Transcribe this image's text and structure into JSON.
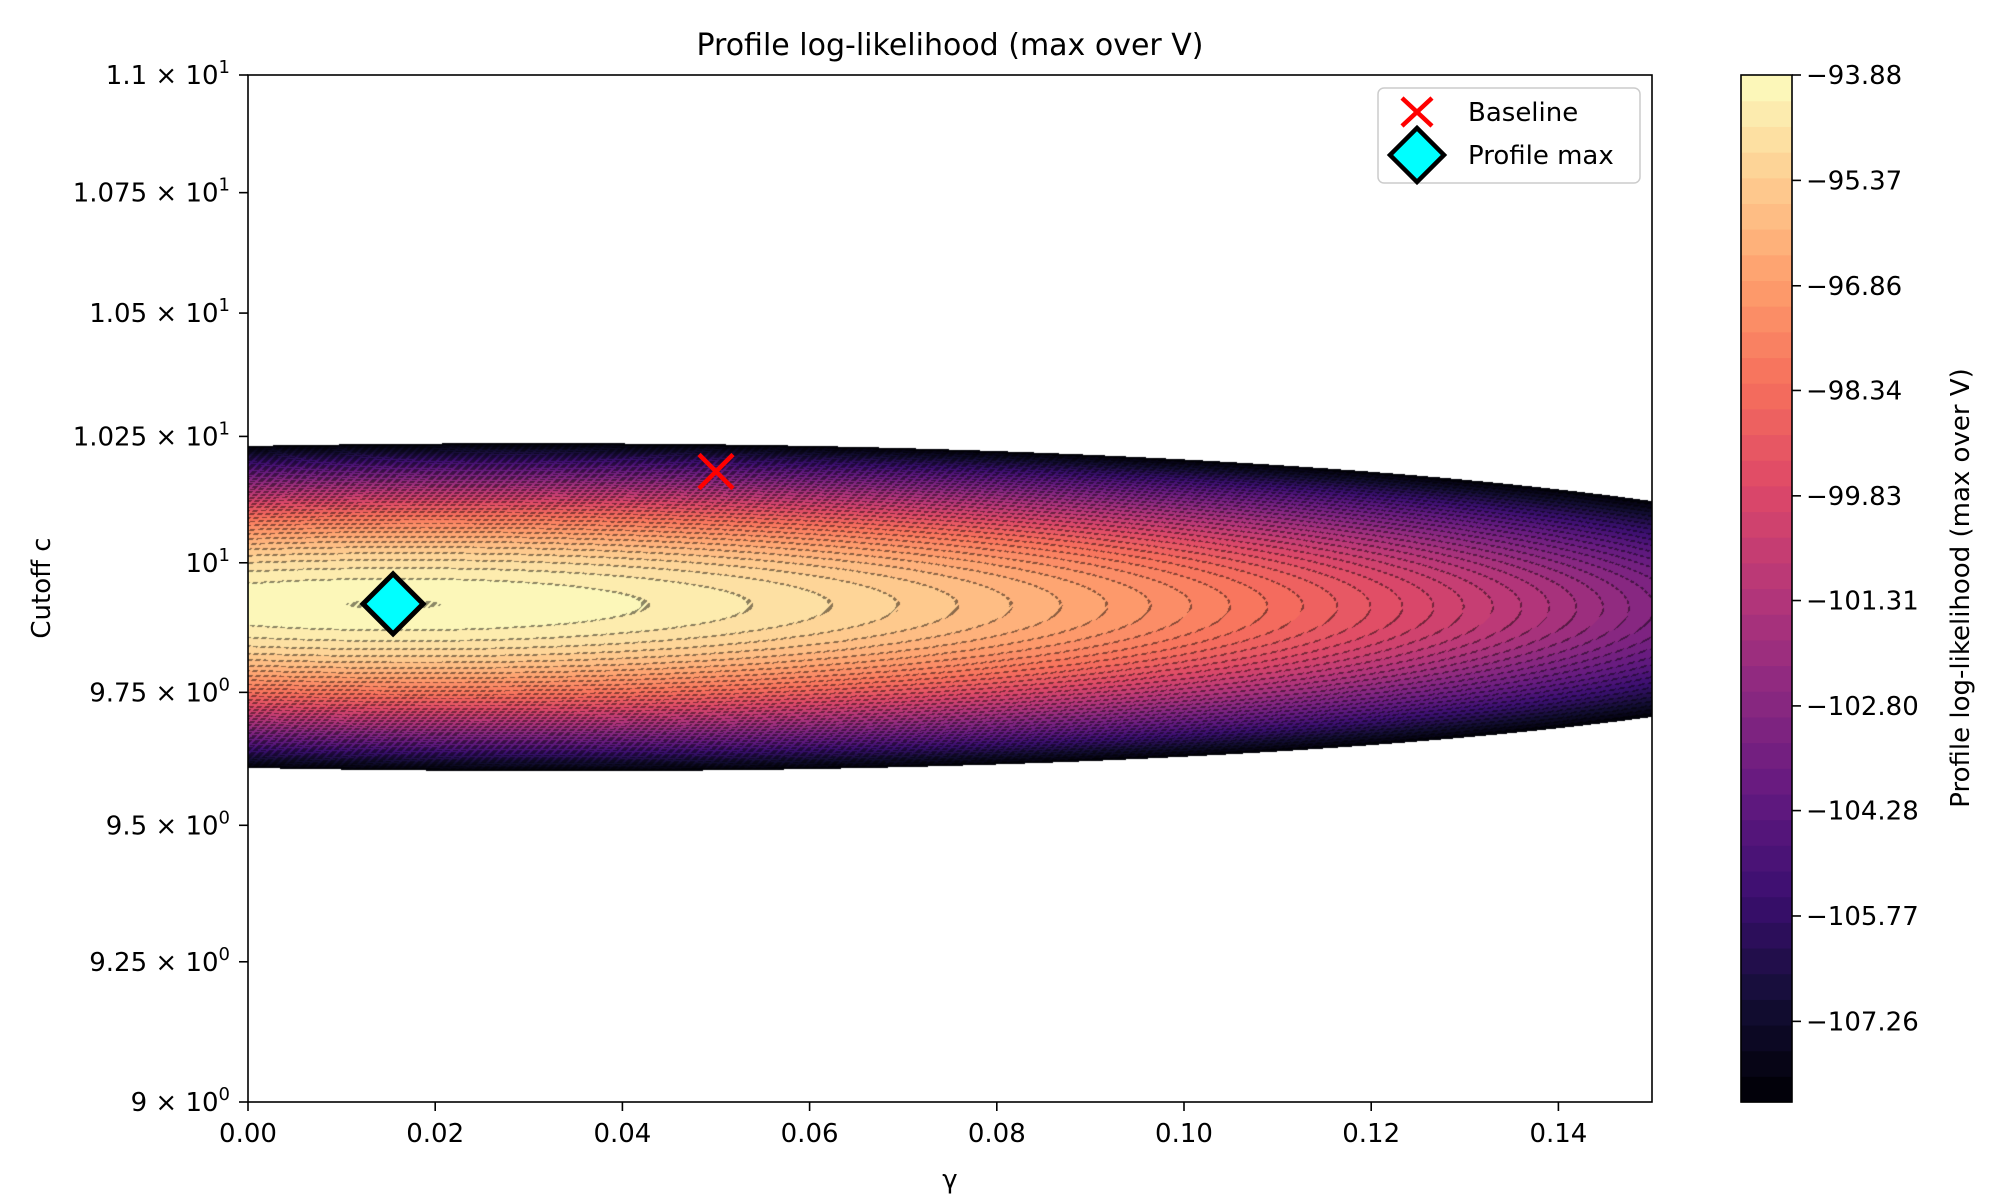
{
  "chart_data": {
    "type": "contourf",
    "title": "Profile log-likelihood (max over V)",
    "xlabel": "γ",
    "ylabel": "Cutoff c",
    "xlim": [
      0.0,
      0.15
    ],
    "ylim": [
      9.0,
      11.0
    ],
    "y_scale": "log",
    "colormap": "magma",
    "grid": false,
    "x_ticks": [
      "0.00",
      "0.02",
      "0.04",
      "0.06",
      "0.08",
      "0.10",
      "0.12",
      "0.14"
    ],
    "y_ticks": [
      {
        "value": 9.0,
        "mantissa": "9 × 10",
        "exp": "0"
      },
      {
        "value": 9.25,
        "mantissa": "9.25 × 10",
        "exp": "0"
      },
      {
        "value": 9.5,
        "mantissa": "9.5 × 10",
        "exp": "0"
      },
      {
        "value": 9.75,
        "mantissa": "9.75 × 10",
        "exp": "0"
      },
      {
        "value": 10.0,
        "mantissa": "10",
        "exp": "1"
      },
      {
        "value": 10.25,
        "mantissa": "1.025 × 10",
        "exp": "1"
      },
      {
        "value": 10.5,
        "mantissa": "1.05 × 10",
        "exp": "1"
      },
      {
        "value": 10.75,
        "mantissa": "1.075 × 10",
        "exp": "1"
      },
      {
        "value": 11.0,
        "mantissa": "1.1 × 10",
        "exp": "1"
      }
    ],
    "colorbar": {
      "label": "Profile log-likelihood (max over V)",
      "min": -108.4,
      "max": -93.88,
      "ticks": [
        "-93.88",
        "-95.37",
        "-96.86",
        "-98.34",
        "-99.83",
        "-101.31",
        "-102.80",
        "-104.28",
        "-105.77",
        "-107.26"
      ]
    },
    "surface": {
      "peak_value": -93.88,
      "peak_gamma": 0.0155,
      "peak_c": 9.92
    },
    "markers": [
      {
        "name": "Baseline",
        "gamma": 0.05,
        "c": 10.18,
        "symbol": "x",
        "color": "#ff0000"
      },
      {
        "name": "Profile max",
        "gamma": 0.0155,
        "c": 9.92,
        "symbol": "diamond",
        "color": "#00ffff"
      }
    ],
    "legend": {
      "position": "upper-right",
      "entries": [
        "Baseline",
        "Profile max"
      ]
    }
  }
}
